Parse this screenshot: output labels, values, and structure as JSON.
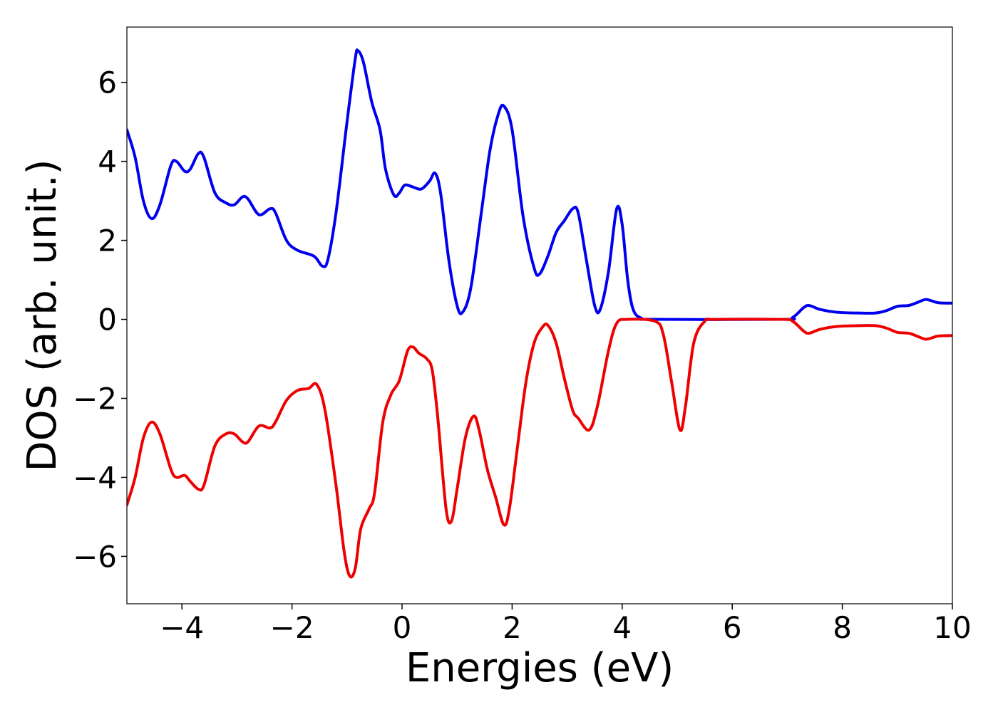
{
  "chart_data": {
    "type": "line",
    "title": "",
    "xlabel": "Energies (eV)",
    "ylabel": "DOS (arb. unit.)",
    "xlim": [
      -5,
      10
    ],
    "ylim": [
      -7.2,
      7.4
    ],
    "grid": false,
    "legend": "none",
    "xticks": [
      -4,
      -2,
      0,
      2,
      4,
      6,
      8,
      10
    ],
    "xtick_labels": [
      "−4",
      "−2",
      "0",
      "2",
      "4",
      "6",
      "8",
      "10"
    ],
    "yticks": [
      -6,
      -4,
      -2,
      0,
      2,
      4,
      6
    ],
    "ytick_labels": [
      "−6",
      "−4",
      "−2",
      "0",
      "2",
      "4",
      "6"
    ],
    "series": [
      {
        "color": "#0000ee",
        "points": [
          [
            -5.0,
            4.8
          ],
          [
            -4.85,
            4.1
          ],
          [
            -4.7,
            3.0
          ],
          [
            -4.55,
            2.55
          ],
          [
            -4.4,
            2.9
          ],
          [
            -4.2,
            3.9
          ],
          [
            -4.1,
            4.0
          ],
          [
            -3.95,
            3.75
          ],
          [
            -3.85,
            3.8
          ],
          [
            -3.7,
            4.2
          ],
          [
            -3.6,
            4.1
          ],
          [
            -3.4,
            3.2
          ],
          [
            -3.2,
            2.95
          ],
          [
            -3.05,
            2.9
          ],
          [
            -2.9,
            3.1
          ],
          [
            -2.8,
            3.05
          ],
          [
            -2.6,
            2.65
          ],
          [
            -2.4,
            2.8
          ],
          [
            -2.3,
            2.7
          ],
          [
            -2.1,
            2.0
          ],
          [
            -1.9,
            1.75
          ],
          [
            -1.6,
            1.6
          ],
          [
            -1.45,
            1.35
          ],
          [
            -1.35,
            1.5
          ],
          [
            -1.2,
            2.7
          ],
          [
            -1.0,
            5.0
          ],
          [
            -0.85,
            6.6
          ],
          [
            -0.8,
            6.8
          ],
          [
            -0.7,
            6.5
          ],
          [
            -0.55,
            5.5
          ],
          [
            -0.4,
            4.8
          ],
          [
            -0.3,
            3.8
          ],
          [
            -0.15,
            3.15
          ],
          [
            -0.05,
            3.2
          ],
          [
            0.05,
            3.4
          ],
          [
            0.2,
            3.35
          ],
          [
            0.35,
            3.3
          ],
          [
            0.5,
            3.5
          ],
          [
            0.6,
            3.7
          ],
          [
            0.7,
            3.2
          ],
          [
            0.85,
            1.5
          ],
          [
            1.0,
            0.35
          ],
          [
            1.1,
            0.18
          ],
          [
            1.25,
            0.8
          ],
          [
            1.45,
            2.8
          ],
          [
            1.6,
            4.3
          ],
          [
            1.75,
            5.2
          ],
          [
            1.85,
            5.4
          ],
          [
            2.0,
            4.8
          ],
          [
            2.2,
            2.6
          ],
          [
            2.4,
            1.3
          ],
          [
            2.5,
            1.15
          ],
          [
            2.65,
            1.6
          ],
          [
            2.8,
            2.2
          ],
          [
            2.95,
            2.5
          ],
          [
            3.1,
            2.8
          ],
          [
            3.2,
            2.7
          ],
          [
            3.35,
            1.5
          ],
          [
            3.5,
            0.35
          ],
          [
            3.6,
            0.25
          ],
          [
            3.75,
            1.2
          ],
          [
            3.9,
            2.8
          ],
          [
            4.0,
            2.4
          ],
          [
            4.1,
            1.0
          ],
          [
            4.2,
            0.25
          ],
          [
            4.35,
            0.03
          ],
          [
            4.6,
            0.0
          ],
          [
            6.9,
            0.0
          ],
          [
            7.1,
            0.05
          ],
          [
            7.3,
            0.3
          ],
          [
            7.4,
            0.35
          ],
          [
            7.6,
            0.25
          ],
          [
            7.9,
            0.18
          ],
          [
            8.3,
            0.16
          ],
          [
            8.6,
            0.16
          ],
          [
            8.8,
            0.22
          ],
          [
            9.0,
            0.33
          ],
          [
            9.2,
            0.35
          ],
          [
            9.35,
            0.42
          ],
          [
            9.5,
            0.5
          ],
          [
            9.6,
            0.48
          ],
          [
            9.75,
            0.42
          ],
          [
            10.0,
            0.41
          ]
        ]
      },
      {
        "color": "#ee0000",
        "points": [
          [
            -5.0,
            -4.7
          ],
          [
            -4.85,
            -4.0
          ],
          [
            -4.7,
            -3.0
          ],
          [
            -4.55,
            -2.6
          ],
          [
            -4.4,
            -2.9
          ],
          [
            -4.2,
            -3.8
          ],
          [
            -4.1,
            -4.0
          ],
          [
            -3.95,
            -3.95
          ],
          [
            -3.85,
            -4.1
          ],
          [
            -3.7,
            -4.3
          ],
          [
            -3.6,
            -4.2
          ],
          [
            -3.4,
            -3.2
          ],
          [
            -3.2,
            -2.9
          ],
          [
            -3.05,
            -2.9
          ],
          [
            -2.9,
            -3.1
          ],
          [
            -2.8,
            -3.1
          ],
          [
            -2.6,
            -2.7
          ],
          [
            -2.4,
            -2.75
          ],
          [
            -2.3,
            -2.6
          ],
          [
            -2.1,
            -2.05
          ],
          [
            -1.9,
            -1.8
          ],
          [
            -1.7,
            -1.75
          ],
          [
            -1.55,
            -1.65
          ],
          [
            -1.4,
            -2.3
          ],
          [
            -1.2,
            -4.2
          ],
          [
            -1.05,
            -5.9
          ],
          [
            -0.95,
            -6.5
          ],
          [
            -0.85,
            -6.3
          ],
          [
            -0.75,
            -5.3
          ],
          [
            -0.6,
            -4.8
          ],
          [
            -0.5,
            -4.4
          ],
          [
            -0.35,
            -2.6
          ],
          [
            -0.2,
            -1.9
          ],
          [
            -0.05,
            -1.55
          ],
          [
            0.1,
            -0.8
          ],
          [
            0.2,
            -0.7
          ],
          [
            0.3,
            -0.85
          ],
          [
            0.45,
            -1.0
          ],
          [
            0.55,
            -1.3
          ],
          [
            0.65,
            -2.5
          ],
          [
            0.8,
            -4.8
          ],
          [
            0.9,
            -5.1
          ],
          [
            1.0,
            -4.3
          ],
          [
            1.15,
            -3.0
          ],
          [
            1.3,
            -2.45
          ],
          [
            1.4,
            -2.8
          ],
          [
            1.55,
            -3.8
          ],
          [
            1.7,
            -4.5
          ],
          [
            1.85,
            -5.2
          ],
          [
            1.95,
            -4.8
          ],
          [
            2.1,
            -3.2
          ],
          [
            2.25,
            -1.6
          ],
          [
            2.4,
            -0.6
          ],
          [
            2.55,
            -0.2
          ],
          [
            2.65,
            -0.15
          ],
          [
            2.8,
            -0.6
          ],
          [
            2.95,
            -1.5
          ],
          [
            3.1,
            -2.3
          ],
          [
            3.2,
            -2.5
          ],
          [
            3.4,
            -2.8
          ],
          [
            3.55,
            -2.2
          ],
          [
            3.75,
            -0.8
          ],
          [
            3.9,
            -0.1
          ],
          [
            4.1,
            0.0
          ],
          [
            4.6,
            -0.05
          ],
          [
            4.75,
            -0.4
          ],
          [
            4.9,
            -1.6
          ],
          [
            5.05,
            -2.8
          ],
          [
            5.15,
            -2.2
          ],
          [
            5.3,
            -0.6
          ],
          [
            5.5,
            -0.05
          ],
          [
            5.7,
            0.0
          ],
          [
            6.9,
            0.0
          ],
          [
            7.1,
            -0.05
          ],
          [
            7.3,
            -0.3
          ],
          [
            7.4,
            -0.35
          ],
          [
            7.6,
            -0.25
          ],
          [
            7.9,
            -0.18
          ],
          [
            8.3,
            -0.16
          ],
          [
            8.6,
            -0.16
          ],
          [
            8.8,
            -0.22
          ],
          [
            9.0,
            -0.33
          ],
          [
            9.2,
            -0.35
          ],
          [
            9.35,
            -0.42
          ],
          [
            9.5,
            -0.5
          ],
          [
            9.6,
            -0.48
          ],
          [
            9.75,
            -0.42
          ],
          [
            10.0,
            -0.41
          ]
        ]
      }
    ]
  }
}
